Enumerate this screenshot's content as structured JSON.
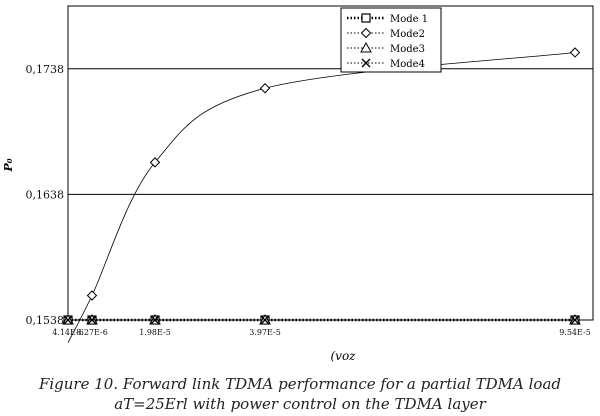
{
  "chart_data": {
    "type": "line",
    "x_categories": [
      "4.14E-6",
      "8.27E-6",
      "1.98E-5",
      "3.97E-5",
      "9.54E-5"
    ],
    "ylabel": "P₀",
    "xlabel": "(voz",
    "y_ticks": [
      "0,1538",
      "0,1638",
      "0,1738"
    ],
    "ylim": [
      0.1538,
      0.1788
    ],
    "grid": "horizontal",
    "legend_position": "top-right",
    "series": [
      {
        "name": "Mode 1",
        "marker": "square",
        "style": "dotted-thick",
        "values": [
          0.1538,
          0.1538,
          0.1538,
          0.1538,
          0.1538
        ]
      },
      {
        "name": "Mode2",
        "marker": "diamond",
        "style": "dotted",
        "values": [
          0.152,
          0.15575,
          0.16635,
          0.17225,
          0.1751
        ]
      },
      {
        "name": "Mode3",
        "marker": "triangle",
        "style": "dotted",
        "values": [
          0.1538,
          0.1538,
          0.1538,
          0.1538,
          0.1538
        ]
      },
      {
        "name": "Mode4",
        "marker": "x",
        "style": "dotted",
        "values": [
          0.1538,
          0.1538,
          0.1538,
          0.1538,
          0.1538
        ]
      }
    ]
  },
  "caption": {
    "line1": "Figure 10. Forward link TDMA performance for a partial TDMA load",
    "line2": "aT=25Erl with power control on the TDMA layer"
  }
}
